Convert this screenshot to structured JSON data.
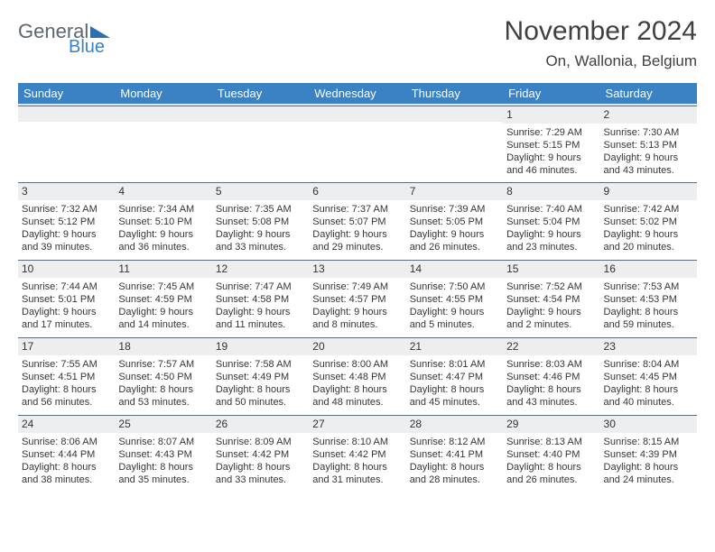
{
  "brand": {
    "general": "General",
    "blue": "Blue",
    "tri_color": "#2f6fb0"
  },
  "title": {
    "month": "November 2024",
    "location": "On, Wallonia, Belgium"
  },
  "colors": {
    "header_bg": "#3a82c4",
    "header_text": "#ffffff",
    "daynum_bg": "#eceef0",
    "daynum_border": "#5f6a78",
    "body_text": "#333333"
  },
  "weekdays": [
    "Sunday",
    "Monday",
    "Tuesday",
    "Wednesday",
    "Thursday",
    "Friday",
    "Saturday"
  ],
  "weeks": [
    [
      null,
      null,
      null,
      null,
      null,
      {
        "n": "1",
        "sr": "Sunrise: 7:29 AM",
        "ss": "Sunset: 5:15 PM",
        "d1": "Daylight: 9 hours",
        "d2": "and 46 minutes."
      },
      {
        "n": "2",
        "sr": "Sunrise: 7:30 AM",
        "ss": "Sunset: 5:13 PM",
        "d1": "Daylight: 9 hours",
        "d2": "and 43 minutes."
      }
    ],
    [
      {
        "n": "3",
        "sr": "Sunrise: 7:32 AM",
        "ss": "Sunset: 5:12 PM",
        "d1": "Daylight: 9 hours",
        "d2": "and 39 minutes."
      },
      {
        "n": "4",
        "sr": "Sunrise: 7:34 AM",
        "ss": "Sunset: 5:10 PM",
        "d1": "Daylight: 9 hours",
        "d2": "and 36 minutes."
      },
      {
        "n": "5",
        "sr": "Sunrise: 7:35 AM",
        "ss": "Sunset: 5:08 PM",
        "d1": "Daylight: 9 hours",
        "d2": "and 33 minutes."
      },
      {
        "n": "6",
        "sr": "Sunrise: 7:37 AM",
        "ss": "Sunset: 5:07 PM",
        "d1": "Daylight: 9 hours",
        "d2": "and 29 minutes."
      },
      {
        "n": "7",
        "sr": "Sunrise: 7:39 AM",
        "ss": "Sunset: 5:05 PM",
        "d1": "Daylight: 9 hours",
        "d2": "and 26 minutes."
      },
      {
        "n": "8",
        "sr": "Sunrise: 7:40 AM",
        "ss": "Sunset: 5:04 PM",
        "d1": "Daylight: 9 hours",
        "d2": "and 23 minutes."
      },
      {
        "n": "9",
        "sr": "Sunrise: 7:42 AM",
        "ss": "Sunset: 5:02 PM",
        "d1": "Daylight: 9 hours",
        "d2": "and 20 minutes."
      }
    ],
    [
      {
        "n": "10",
        "sr": "Sunrise: 7:44 AM",
        "ss": "Sunset: 5:01 PM",
        "d1": "Daylight: 9 hours",
        "d2": "and 17 minutes."
      },
      {
        "n": "11",
        "sr": "Sunrise: 7:45 AM",
        "ss": "Sunset: 4:59 PM",
        "d1": "Daylight: 9 hours",
        "d2": "and 14 minutes."
      },
      {
        "n": "12",
        "sr": "Sunrise: 7:47 AM",
        "ss": "Sunset: 4:58 PM",
        "d1": "Daylight: 9 hours",
        "d2": "and 11 minutes."
      },
      {
        "n": "13",
        "sr": "Sunrise: 7:49 AM",
        "ss": "Sunset: 4:57 PM",
        "d1": "Daylight: 9 hours",
        "d2": "and 8 minutes."
      },
      {
        "n": "14",
        "sr": "Sunrise: 7:50 AM",
        "ss": "Sunset: 4:55 PM",
        "d1": "Daylight: 9 hours",
        "d2": "and 5 minutes."
      },
      {
        "n": "15",
        "sr": "Sunrise: 7:52 AM",
        "ss": "Sunset: 4:54 PM",
        "d1": "Daylight: 9 hours",
        "d2": "and 2 minutes."
      },
      {
        "n": "16",
        "sr": "Sunrise: 7:53 AM",
        "ss": "Sunset: 4:53 PM",
        "d1": "Daylight: 8 hours",
        "d2": "and 59 minutes."
      }
    ],
    [
      {
        "n": "17",
        "sr": "Sunrise: 7:55 AM",
        "ss": "Sunset: 4:51 PM",
        "d1": "Daylight: 8 hours",
        "d2": "and 56 minutes."
      },
      {
        "n": "18",
        "sr": "Sunrise: 7:57 AM",
        "ss": "Sunset: 4:50 PM",
        "d1": "Daylight: 8 hours",
        "d2": "and 53 minutes."
      },
      {
        "n": "19",
        "sr": "Sunrise: 7:58 AM",
        "ss": "Sunset: 4:49 PM",
        "d1": "Daylight: 8 hours",
        "d2": "and 50 minutes."
      },
      {
        "n": "20",
        "sr": "Sunrise: 8:00 AM",
        "ss": "Sunset: 4:48 PM",
        "d1": "Daylight: 8 hours",
        "d2": "and 48 minutes."
      },
      {
        "n": "21",
        "sr": "Sunrise: 8:01 AM",
        "ss": "Sunset: 4:47 PM",
        "d1": "Daylight: 8 hours",
        "d2": "and 45 minutes."
      },
      {
        "n": "22",
        "sr": "Sunrise: 8:03 AM",
        "ss": "Sunset: 4:46 PM",
        "d1": "Daylight: 8 hours",
        "d2": "and 43 minutes."
      },
      {
        "n": "23",
        "sr": "Sunrise: 8:04 AM",
        "ss": "Sunset: 4:45 PM",
        "d1": "Daylight: 8 hours",
        "d2": "and 40 minutes."
      }
    ],
    [
      {
        "n": "24",
        "sr": "Sunrise: 8:06 AM",
        "ss": "Sunset: 4:44 PM",
        "d1": "Daylight: 8 hours",
        "d2": "and 38 minutes."
      },
      {
        "n": "25",
        "sr": "Sunrise: 8:07 AM",
        "ss": "Sunset: 4:43 PM",
        "d1": "Daylight: 8 hours",
        "d2": "and 35 minutes."
      },
      {
        "n": "26",
        "sr": "Sunrise: 8:09 AM",
        "ss": "Sunset: 4:42 PM",
        "d1": "Daylight: 8 hours",
        "d2": "and 33 minutes."
      },
      {
        "n": "27",
        "sr": "Sunrise: 8:10 AM",
        "ss": "Sunset: 4:42 PM",
        "d1": "Daylight: 8 hours",
        "d2": "and 31 minutes."
      },
      {
        "n": "28",
        "sr": "Sunrise: 8:12 AM",
        "ss": "Sunset: 4:41 PM",
        "d1": "Daylight: 8 hours",
        "d2": "and 28 minutes."
      },
      {
        "n": "29",
        "sr": "Sunrise: 8:13 AM",
        "ss": "Sunset: 4:40 PM",
        "d1": "Daylight: 8 hours",
        "d2": "and 26 minutes."
      },
      {
        "n": "30",
        "sr": "Sunrise: 8:15 AM",
        "ss": "Sunset: 4:39 PM",
        "d1": "Daylight: 8 hours",
        "d2": "and 24 minutes."
      }
    ]
  ]
}
